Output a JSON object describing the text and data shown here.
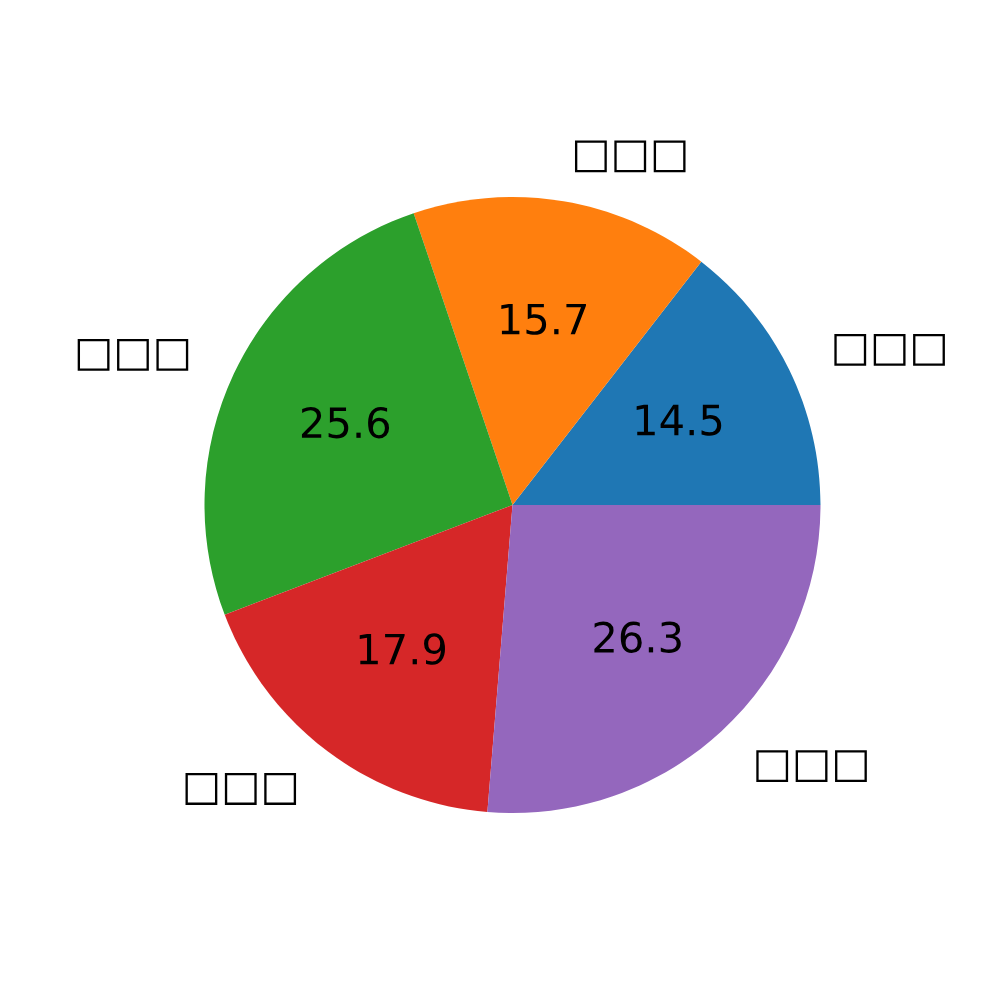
{
  "chart_data": {
    "type": "pie",
    "categories": [
      "□□□",
      "□□□",
      "□□□",
      "□□□",
      "□□□"
    ],
    "values": [
      14.5,
      15.7,
      25.6,
      17.9,
      26.3
    ],
    "colors": [
      "#1f77b4",
      "#ff7f0e",
      "#2ca02c",
      "#d62728",
      "#9467bd"
    ],
    "data_labels": true
  }
}
